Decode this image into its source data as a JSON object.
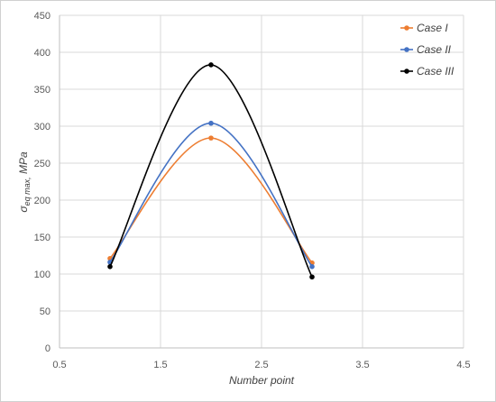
{
  "chart_data": {
    "type": "line",
    "xlabel": "Number point",
    "ylabel_main": "σ",
    "ylabel_sub": "eq max,",
    "ylabel_unit": " MPa",
    "xlim": [
      0.5,
      4.5
    ],
    "ylim": [
      0,
      450
    ],
    "xticks": [
      "0.5",
      "1.5",
      "2.5",
      "3.5",
      "4.5"
    ],
    "yticks": [
      "0",
      "50",
      "100",
      "150",
      "200",
      "250",
      "300",
      "350",
      "400",
      "450"
    ],
    "grid": true,
    "legend_position": "top-right",
    "x": [
      1,
      2,
      3
    ],
    "series": [
      {
        "name": "Case I",
        "color": "#ED7D31",
        "values": [
          121,
          284,
          115
        ]
      },
      {
        "name": "Case II",
        "color": "#4472C4",
        "values": [
          116,
          304,
          110
        ]
      },
      {
        "name": "Case III",
        "color": "#000000",
        "values": [
          110,
          383,
          96
        ]
      }
    ]
  }
}
